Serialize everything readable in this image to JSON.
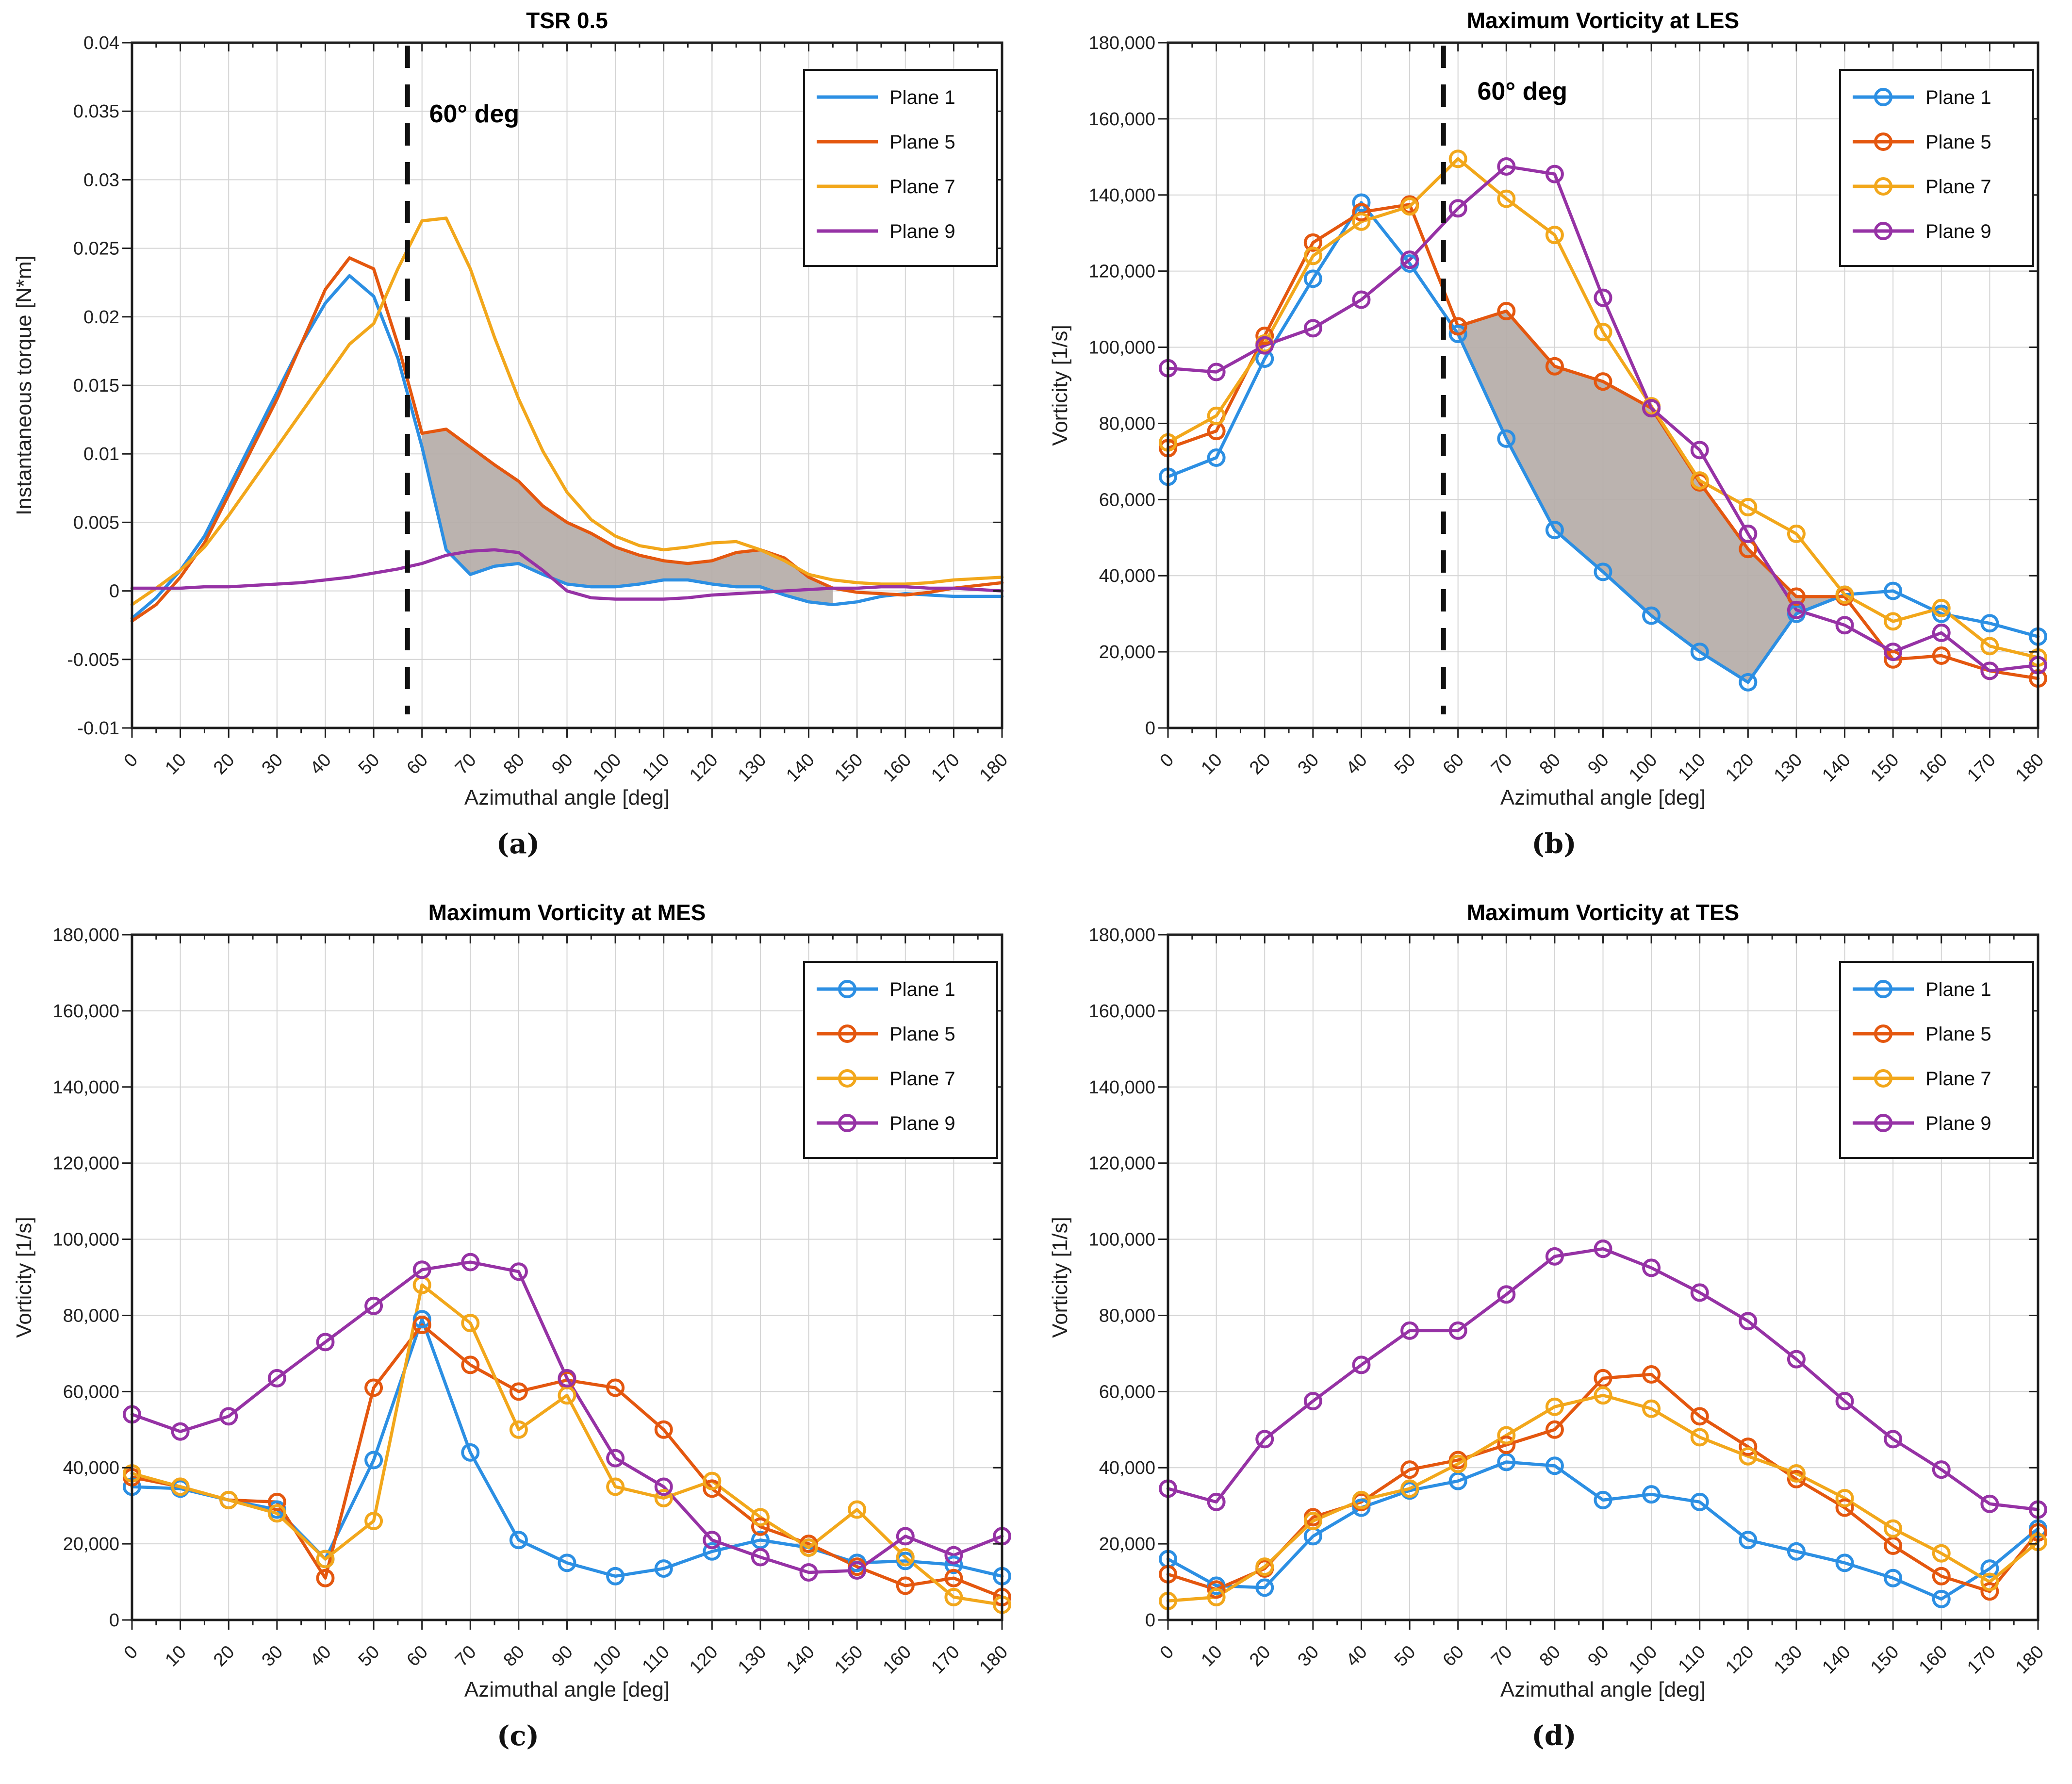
{
  "figure": {
    "background": "#ffffff",
    "grid_color": "#d4d4d4",
    "axis_color": "#1f1f1f",
    "band_color": "#b5aca8",
    "dashed_line_color": "#111111"
  },
  "colors": {
    "plane1": "#2C8FE3",
    "plane5": "#E4570F",
    "plane7": "#F2A71B",
    "plane9": "#9632A5"
  },
  "chart_data": [
    {
      "key": "a",
      "caption": "(a)",
      "type": "line",
      "title": "TSR 0.5",
      "xlabel": "Azimuthal angle [deg]",
      "ylabel": "Instantaneous torque [N*m]",
      "xlim": [
        0,
        180
      ],
      "xticks": [
        0,
        10,
        20,
        30,
        40,
        50,
        60,
        70,
        80,
        90,
        100,
        110,
        120,
        130,
        140,
        150,
        160,
        170,
        180
      ],
      "ylim": [
        -0.01,
        0.04
      ],
      "yticks": [
        -0.01,
        -0.005,
        0,
        0.005,
        0.01,
        0.015,
        0.02,
        0.025,
        0.03,
        0.035,
        0.04
      ],
      "ytick_labels": [
        "-0.01",
        "-0.005",
        "0",
        "0.005",
        "0.01",
        "0.015",
        "0.02",
        "0.025",
        "0.03",
        "0.035",
        "0.04"
      ],
      "grid": true,
      "markers": false,
      "legend_position": "top-right",
      "vline": {
        "x": 57
      },
      "annotation": {
        "text": "60° deg",
        "x": 61.5,
        "y": 0.0342
      },
      "band": {
        "upper": "Plane 5",
        "lower": "Plane 1",
        "x_from": 60,
        "x_to": 145
      },
      "x": [
        0,
        5,
        10,
        15,
        20,
        25,
        30,
        35,
        40,
        45,
        50,
        55,
        60,
        65,
        70,
        75,
        80,
        85,
        90,
        95,
        100,
        105,
        110,
        115,
        120,
        125,
        130,
        135,
        140,
        145,
        150,
        155,
        160,
        165,
        170,
        175,
        180
      ],
      "series": [
        {
          "name": "Plane 1",
          "color_key": "plane1",
          "values": [
            -0.002,
            -0.0005,
            0.0015,
            0.004,
            0.0075,
            0.011,
            0.0145,
            0.018,
            0.021,
            0.023,
            0.0215,
            0.017,
            0.0105,
            0.003,
            0.0012,
            0.0018,
            0.002,
            0.0012,
            0.0005,
            0.0003,
            0.0003,
            0.0005,
            0.0008,
            0.0008,
            0.0005,
            0.0003,
            0.0003,
            -0.0003,
            -0.0008,
            -0.001,
            -0.0008,
            -0.0004,
            -0.0002,
            -0.0003,
            -0.0004,
            -0.0004,
            -0.0004
          ]
        },
        {
          "name": "Plane 5",
          "color_key": "plane5",
          "values": [
            -0.0022,
            -0.001,
            0.001,
            0.0035,
            0.007,
            0.0105,
            0.014,
            0.018,
            0.022,
            0.0243,
            0.0235,
            0.018,
            0.0115,
            0.0118,
            0.0105,
            0.0092,
            0.008,
            0.0062,
            0.005,
            0.0042,
            0.0032,
            0.0026,
            0.0022,
            0.002,
            0.0022,
            0.0028,
            0.003,
            0.0024,
            0.001,
            0.0002,
            -0.0001,
            -0.0002,
            -0.0003,
            -0.0001,
            0.0002,
            0.0004,
            0.0006
          ]
        },
        {
          "name": "Plane 7",
          "color_key": "plane7",
          "values": [
            -0.001,
            0.0002,
            0.0015,
            0.0032,
            0.0055,
            0.008,
            0.0105,
            0.013,
            0.0155,
            0.018,
            0.0195,
            0.0235,
            0.027,
            0.0272,
            0.0235,
            0.0185,
            0.014,
            0.0102,
            0.0072,
            0.0052,
            0.004,
            0.0033,
            0.003,
            0.0032,
            0.0035,
            0.0036,
            0.003,
            0.0022,
            0.0012,
            0.0008,
            0.0006,
            0.0005,
            0.0005,
            0.0006,
            0.0008,
            0.0009,
            0.001
          ]
        },
        {
          "name": "Plane 9",
          "color_key": "plane9",
          "values": [
            0.0002,
            0.0002,
            0.0002,
            0.0003,
            0.0003,
            0.0004,
            0.0005,
            0.0006,
            0.0008,
            0.001,
            0.0013,
            0.0016,
            0.002,
            0.0026,
            0.0029,
            0.003,
            0.0028,
            0.0015,
            0.0,
            -0.0005,
            -0.0006,
            -0.0006,
            -0.0006,
            -0.0005,
            -0.0003,
            -0.0002,
            -0.0001,
            0.0,
            0.0001,
            0.0002,
            0.0002,
            0.0003,
            0.0003,
            0.0002,
            0.0002,
            0.0001,
            0.0
          ]
        }
      ]
    },
    {
      "key": "b",
      "caption": "(b)",
      "type": "line",
      "title": "Maximum Vorticity at LES",
      "xlabel": "Azimuthal angle [deg]",
      "ylabel": "Vorticity [1/s]",
      "xlim": [
        0,
        180
      ],
      "xticks": [
        0,
        10,
        20,
        30,
        40,
        50,
        60,
        70,
        80,
        90,
        100,
        110,
        120,
        130,
        140,
        150,
        160,
        170,
        180
      ],
      "ylim": [
        0,
        180000
      ],
      "yticks": [
        0,
        20000,
        40000,
        60000,
        80000,
        100000,
        120000,
        140000,
        160000,
        180000
      ],
      "ytick_labels": [
        "0",
        "20,000",
        "40,000",
        "60,000",
        "80,000",
        "100,000",
        "120,000",
        "140,000",
        "160,000",
        "180,000"
      ],
      "grid": true,
      "markers": true,
      "legend_position": "top-right",
      "vline": {
        "x": 57
      },
      "annotation": {
        "text": "60° deg",
        "x": 64,
        "y": 165000
      },
      "band": {
        "upper": "Plane 5",
        "lower": "Plane 1",
        "x_from": 60,
        "x_to": 140
      },
      "x": [
        0,
        10,
        20,
        30,
        40,
        50,
        60,
        70,
        80,
        90,
        100,
        110,
        120,
        130,
        140,
        150,
        160,
        170,
        180
      ],
      "series": [
        {
          "name": "Plane 1",
          "color_key": "plane1",
          "values": [
            66000,
            71000,
            97000,
            118000,
            138000,
            122000,
            103500,
            76000,
            52000,
            41000,
            29500,
            20000,
            12000,
            30000,
            35000,
            36000,
            30000,
            27500,
            24000
          ]
        },
        {
          "name": "Plane 5",
          "color_key": "plane5",
          "values": [
            73500,
            78000,
            103000,
            127500,
            135500,
            137500,
            105500,
            109500,
            95000,
            91000,
            84000,
            64500,
            47000,
            34500,
            34500,
            18000,
            19000,
            15000,
            13000
          ]
        },
        {
          "name": "Plane 7",
          "color_key": "plane7",
          "values": [
            75000,
            82000,
            101000,
            124000,
            133000,
            137000,
            149500,
            139000,
            129500,
            104000,
            84500,
            65000,
            58000,
            51000,
            35000,
            28000,
            31500,
            21500,
            18500
          ]
        },
        {
          "name": "Plane 9",
          "color_key": "plane9",
          "values": [
            94500,
            93500,
            100500,
            105000,
            112500,
            123000,
            136500,
            147500,
            145500,
            113000,
            84000,
            73000,
            51000,
            31000,
            27000,
            20000,
            25000,
            15000,
            16500
          ]
        }
      ]
    },
    {
      "key": "c",
      "caption": "(c)",
      "type": "line",
      "title": "Maximum Vorticity at MES",
      "xlabel": "Azimuthal angle [deg]",
      "ylabel": "Vorticity [1/s]",
      "xlim": [
        0,
        180
      ],
      "xticks": [
        0,
        10,
        20,
        30,
        40,
        50,
        60,
        70,
        80,
        90,
        100,
        110,
        120,
        130,
        140,
        150,
        160,
        170,
        180
      ],
      "ylim": [
        0,
        180000
      ],
      "yticks": [
        0,
        20000,
        40000,
        60000,
        80000,
        100000,
        120000,
        140000,
        160000,
        180000
      ],
      "ytick_labels": [
        "0",
        "20,000",
        "40,000",
        "60,000",
        "80,000",
        "100,000",
        "120,000",
        "140,000",
        "160,000",
        "180,000"
      ],
      "grid": true,
      "markers": true,
      "legend_position": "top-right",
      "vline": null,
      "annotation": null,
      "band": null,
      "x": [
        0,
        10,
        20,
        30,
        40,
        50,
        60,
        70,
        80,
        90,
        100,
        110,
        120,
        130,
        140,
        150,
        160,
        170,
        180
      ],
      "series": [
        {
          "name": "Plane 1",
          "color_key": "plane1",
          "values": [
            35000,
            34500,
            31500,
            29000,
            16000,
            42000,
            79000,
            44000,
            21000,
            15000,
            11500,
            13500,
            18000,
            21000,
            19000,
            15000,
            15500,
            14500,
            11500
          ]
        },
        {
          "name": "Plane 5",
          "color_key": "plane5",
          "values": [
            37500,
            35000,
            31500,
            31000,
            11000,
            61000,
            77500,
            67000,
            60000,
            63000,
            61000,
            50000,
            34500,
            24500,
            20000,
            14000,
            9000,
            11000,
            6000
          ]
        },
        {
          "name": "Plane 7",
          "color_key": "plane7",
          "values": [
            38500,
            35000,
            31500,
            28000,
            16000,
            26000,
            88000,
            78000,
            50000,
            59000,
            35000,
            32000,
            36500,
            27000,
            19000,
            29000,
            16500,
            6000,
            4000
          ]
        },
        {
          "name": "Plane 9",
          "color_key": "plane9",
          "values": [
            54000,
            49500,
            53500,
            63500,
            73000,
            82500,
            92000,
            94000,
            91500,
            63500,
            42500,
            35000,
            21000,
            16500,
            12500,
            13000,
            22000,
            17000,
            22000
          ]
        }
      ]
    },
    {
      "key": "d",
      "caption": "(d)",
      "type": "line",
      "title": "Maximum Vorticity at TES",
      "xlabel": "Azimuthal angle [deg]",
      "ylabel": "Vorticity [1/s]",
      "xlim": [
        0,
        180
      ],
      "xticks": [
        0,
        10,
        20,
        30,
        40,
        50,
        60,
        70,
        80,
        90,
        100,
        110,
        120,
        130,
        140,
        150,
        160,
        170,
        180
      ],
      "ylim": [
        0,
        180000
      ],
      "yticks": [
        0,
        20000,
        40000,
        60000,
        80000,
        100000,
        120000,
        140000,
        160000,
        180000
      ],
      "ytick_labels": [
        "0",
        "20,000",
        "40,000",
        "60,000",
        "80,000",
        "100,000",
        "120,000",
        "140,000",
        "160,000",
        "180,000"
      ],
      "grid": true,
      "markers": true,
      "legend_position": "top-right",
      "vline": null,
      "annotation": null,
      "band": null,
      "x": [
        0,
        10,
        20,
        30,
        40,
        50,
        60,
        70,
        80,
        90,
        100,
        110,
        120,
        130,
        140,
        150,
        160,
        170,
        180
      ],
      "series": [
        {
          "name": "Plane 1",
          "color_key": "plane1",
          "values": [
            16000,
            9000,
            8500,
            22000,
            29500,
            34000,
            36500,
            41500,
            40500,
            31500,
            33000,
            31000,
            21000,
            18000,
            15000,
            11000,
            5500,
            13500,
            24000
          ]
        },
        {
          "name": "Plane 5",
          "color_key": "plane5",
          "values": [
            12000,
            8000,
            13500,
            27000,
            31000,
            39500,
            42000,
            46000,
            50000,
            63500,
            64500,
            53500,
            45500,
            37000,
            29500,
            19500,
            11500,
            7500,
            23000
          ]
        },
        {
          "name": "Plane 7",
          "color_key": "plane7",
          "values": [
            5000,
            6000,
            14000,
            26000,
            31500,
            34500,
            41000,
            48500,
            56000,
            59000,
            55500,
            48000,
            43000,
            38500,
            32000,
            24000,
            17500,
            10000,
            20500
          ]
        },
        {
          "name": "Plane 9",
          "color_key": "plane9",
          "values": [
            34500,
            31000,
            47500,
            57500,
            67000,
            76000,
            76000,
            85500,
            95500,
            97500,
            92500,
            86000,
            78500,
            68500,
            57500,
            47500,
            39500,
            30500,
            29000
          ]
        }
      ]
    }
  ]
}
